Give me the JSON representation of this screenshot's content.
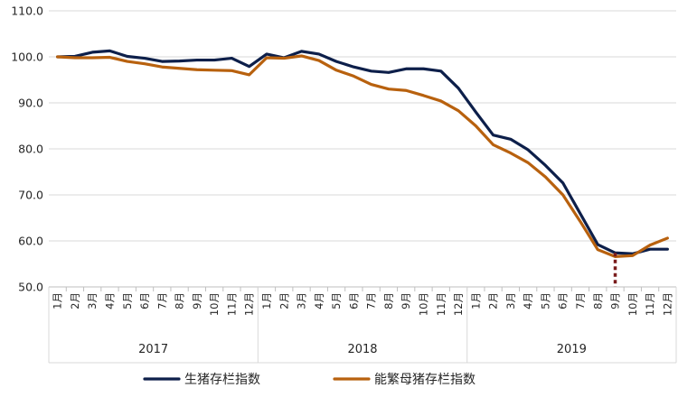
{
  "chart_data": {
    "type": "line",
    "title": "",
    "xlabel": "",
    "ylabel": "",
    "ylim": [
      50,
      110
    ],
    "yticks": [
      "50.0",
      "60.0",
      "70.0",
      "80.0",
      "90.0",
      "100.0",
      "110.0"
    ],
    "grid": true,
    "legend_position": "bottom",
    "years": [
      "2017",
      "2018",
      "2019"
    ],
    "categories": [
      "1月",
      "2月",
      "3月",
      "4月",
      "5月",
      "6月",
      "7月",
      "8月",
      "9月",
      "10月",
      "11月",
      "12月",
      "1月",
      "2月",
      "3月",
      "4月",
      "5月",
      "6月",
      "7月",
      "8月",
      "9月",
      "10月",
      "11月",
      "12月",
      "1月",
      "2月",
      "3月",
      "4月",
      "5月",
      "6月",
      "7月",
      "8月",
      "9月",
      "10月",
      "11月",
      "12月"
    ],
    "series": [
      {
        "name": "生猪存栏指数",
        "color": "#0d1f4a",
        "values": [
          100.0,
          100.1,
          101.0,
          101.3,
          100.1,
          99.7,
          99.0,
          99.1,
          99.3,
          99.3,
          99.7,
          97.9,
          100.6,
          99.8,
          101.2,
          100.6,
          99.0,
          97.8,
          96.9,
          96.6,
          97.4,
          97.4,
          96.9,
          93.2,
          88.0,
          83.0,
          82.1,
          79.8,
          76.4,
          72.6,
          65.9,
          59.2,
          57.4,
          57.2,
          58.2,
          58.2
        ]
      },
      {
        "name": "能繁母猪存栏指数",
        "color": "#b8610e",
        "values": [
          100.0,
          99.8,
          99.8,
          99.9,
          99.0,
          98.5,
          97.8,
          97.5,
          97.2,
          97.1,
          97.0,
          96.1,
          99.8,
          99.7,
          100.2,
          99.2,
          97.1,
          95.8,
          94.0,
          93.0,
          92.7,
          91.6,
          90.4,
          88.3,
          85.0,
          80.9,
          79.1,
          77.0,
          73.9,
          70.0,
          64.2,
          58.1,
          56.6,
          56.8,
          59.1,
          60.6
        ]
      }
    ],
    "annotation": {
      "type": "dotted-marker",
      "category_index": 32,
      "from": 57.4,
      "to": 50.0,
      "color": "#7a1c1c"
    }
  }
}
